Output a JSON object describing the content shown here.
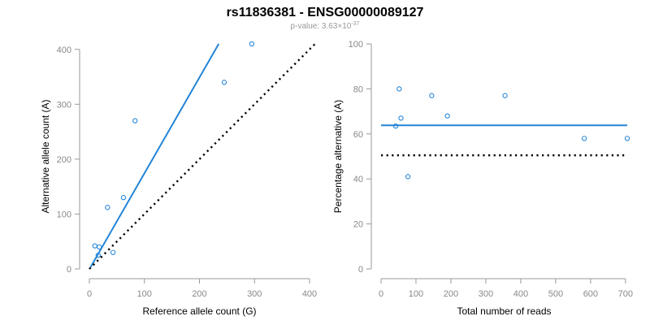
{
  "figure": {
    "title": "rs11836381 - ENSG00000089127",
    "subtitle_prefix": "p-value: 3.63×10",
    "subtitle_exponent": "-37"
  },
  "chart_data": [
    {
      "type": "scatter",
      "xlabel": "Reference allele count (G)",
      "ylabel": "Alternative allele count (A)",
      "xlim": [
        0,
        400
      ],
      "ylim": [
        0,
        410
      ],
      "xticks": [
        0,
        100,
        200,
        300,
        400
      ],
      "yticks": [
        0,
        100,
        200,
        300,
        400
      ],
      "grid": false,
      "points": [
        {
          "x": 10,
          "y": 42
        },
        {
          "x": 16,
          "y": 25
        },
        {
          "x": 18,
          "y": 40
        },
        {
          "x": 33,
          "y": 112
        },
        {
          "x": 43,
          "y": 30
        },
        {
          "x": 62,
          "y": 130
        },
        {
          "x": 83,
          "y": 270
        },
        {
          "x": 245,
          "y": 340
        },
        {
          "x": 295,
          "y": 410
        }
      ],
      "lines": [
        {
          "style": "solid",
          "color": "#2484d6",
          "x": [
            2,
            235
          ],
          "y": [
            3,
            410
          ]
        },
        {
          "style": "dotted",
          "color": "#000000",
          "x": [
            0,
            410
          ],
          "y": [
            0,
            410
          ]
        }
      ]
    },
    {
      "type": "scatter",
      "xlabel": "Total number of reads",
      "ylabel": "Percentage alternative (A)",
      "xlim": [
        0,
        705
      ],
      "ylim": [
        0,
        100
      ],
      "xticks": [
        0,
        100,
        200,
        300,
        400,
        500,
        600,
        700
      ],
      "yticks": [
        0,
        20,
        40,
        60,
        80,
        100
      ],
      "grid": false,
      "points": [
        {
          "x": 42,
          "y": 63.5
        },
        {
          "x": 52,
          "y": 80
        },
        {
          "x": 57,
          "y": 67
        },
        {
          "x": 77,
          "y": 41
        },
        {
          "x": 145,
          "y": 77
        },
        {
          "x": 190,
          "y": 68
        },
        {
          "x": 355,
          "y": 77
        },
        {
          "x": 582,
          "y": 58
        },
        {
          "x": 705,
          "y": 58
        }
      ],
      "lines": [
        {
          "style": "solid",
          "color": "#2484d6",
          "x": [
            0,
            705
          ],
          "y": [
            63.8,
            63.8
          ]
        },
        {
          "style": "dotted",
          "color": "#000000",
          "x": [
            0,
            705
          ],
          "y": [
            50.5,
            50.5
          ]
        }
      ]
    }
  ]
}
